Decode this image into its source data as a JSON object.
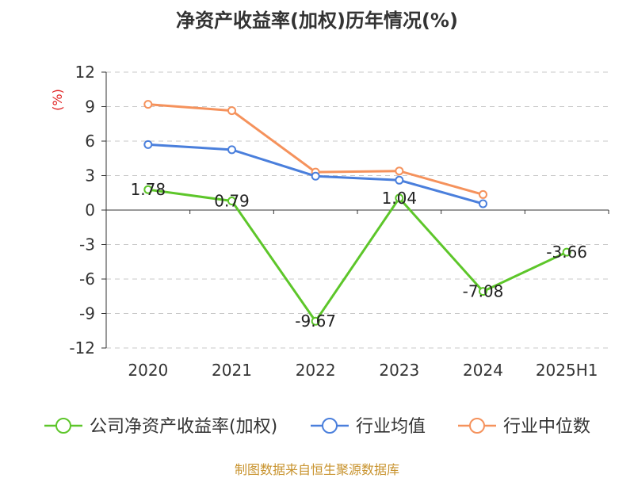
{
  "chart_data": {
    "type": "line",
    "title": "净资产收益率(加权)历年情况(%)",
    "ylabel": "(%)",
    "xlabel": "",
    "categories": [
      "2020",
      "2021",
      "2022",
      "2023",
      "2024",
      "2025H1"
    ],
    "ylim": [
      -12,
      12
    ],
    "yticks": [
      12,
      9,
      6,
      3,
      0,
      -3,
      -6,
      -9,
      -12
    ],
    "grid": true,
    "legend_position": "bottom",
    "series": [
      {
        "name": "公司净资产收益率(加权)",
        "color": "#5dc62a",
        "values": [
          1.78,
          0.79,
          -9.67,
          1.04,
          -7.08,
          -3.66
        ],
        "labels": [
          "1.78",
          "0.79",
          "-9.67",
          "1.04",
          "-7.08",
          "-3.66"
        ]
      },
      {
        "name": "行业均值",
        "color": "#4a7fdc",
        "values": [
          5.7,
          5.25,
          2.95,
          2.6,
          0.55,
          null
        ]
      },
      {
        "name": "行业中位数",
        "color": "#f5925c",
        "values": [
          9.2,
          8.65,
          3.3,
          3.4,
          1.35,
          null
        ]
      }
    ]
  },
  "source": "制图数据来自恒生聚源数据库"
}
